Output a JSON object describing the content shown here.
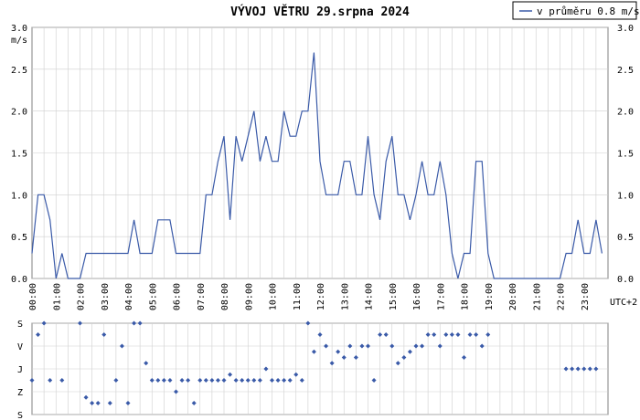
{
  "title": "VÝVOJ VĚTRU  29.srpna 2024",
  "legend": {
    "label": "v průměru 0.8 m/s",
    "color": "#3a5aa8"
  },
  "colors": {
    "line": "#3a5aa8",
    "grid": "#cfcfcf",
    "frame": "#808080"
  },
  "chart_data": [
    {
      "type": "line",
      "title": "VÝVOJ VĚTRU  29.srpna 2024",
      "ylabel": "m/s",
      "xlabel": "UTC+2",
      "x_ticks": [
        "00:00",
        "01:00",
        "02:00",
        "03:00",
        "04:00",
        "05:00",
        "06:00",
        "07:00",
        "08:00",
        "09:00",
        "10:00",
        "11:00",
        "12:00",
        "13:00",
        "14:00",
        "15:00",
        "16:00",
        "17:00",
        "18:00",
        "19:00",
        "20:00",
        "21:00",
        "22:00",
        "23:00"
      ],
      "y_ticks": [
        "0.0",
        "0.5",
        "1.0",
        "1.5",
        "2.0",
        "2.5",
        "3.0"
      ],
      "ylim": [
        0,
        3.0
      ],
      "xlim_hours": [
        0,
        24
      ],
      "grid": true,
      "legend_position": "top-right",
      "series": [
        {
          "name": "v průměru 0.8 m/s",
          "x": [
            0,
            0.25,
            0.5,
            0.75,
            1.0,
            1.25,
            1.5,
            1.75,
            2.0,
            2.25,
            2.5,
            2.75,
            3.0,
            3.25,
            3.5,
            3.75,
            4.0,
            4.25,
            4.5,
            4.75,
            5.0,
            5.25,
            5.5,
            5.75,
            6.0,
            6.25,
            6.5,
            6.75,
            7.0,
            7.25,
            7.5,
            7.75,
            8.0,
            8.25,
            8.5,
            8.75,
            9.0,
            9.25,
            9.5,
            9.75,
            10.0,
            10.25,
            10.5,
            10.75,
            11.0,
            11.25,
            11.5,
            11.75,
            12.0,
            12.25,
            12.5,
            12.75,
            13.0,
            13.25,
            13.5,
            13.75,
            14.0,
            14.25,
            14.5,
            14.75,
            15.0,
            15.25,
            15.5,
            15.75,
            16.0,
            16.25,
            16.5,
            16.75,
            17.0,
            17.25,
            17.5,
            17.75,
            18.0,
            18.25,
            18.5,
            18.75,
            19.0,
            19.25,
            19.5,
            19.75,
            20.0,
            20.25,
            20.5,
            20.75,
            21.0,
            21.25,
            21.5,
            21.75,
            22.0,
            22.25,
            22.5,
            22.75,
            23.0,
            23.25,
            23.5,
            23.75
          ],
          "values": [
            0.3,
            1.0,
            1.0,
            0.7,
            0,
            0.3,
            0,
            0,
            0,
            0.3,
            0.3,
            0.3,
            0.3,
            0.3,
            0.3,
            0.3,
            0.3,
            0.7,
            0.3,
            0.3,
            0.3,
            0.7,
            0.7,
            0.7,
            0.3,
            0.3,
            0.3,
            0.3,
            0.3,
            1.0,
            1.0,
            1.4,
            1.7,
            0.7,
            1.7,
            1.4,
            1.7,
            2.0,
            1.4,
            1.7,
            1.4,
            1.4,
            2.0,
            1.7,
            1.7,
            2.0,
            2.0,
            2.7,
            1.4,
            1.0,
            1.0,
            1.0,
            1.4,
            1.4,
            1.0,
            1.0,
            1.7,
            1.0,
            0.7,
            1.4,
            1.7,
            1.0,
            1.0,
            0.7,
            1.0,
            1.4,
            1.0,
            1.0,
            1.4,
            1.0,
            0.3,
            0,
            0.3,
            0.3,
            1.4,
            1.4,
            0.3,
            0,
            0,
            0,
            0,
            0,
            0,
            0,
            0,
            0,
            0,
            0,
            0,
            0.3,
            0.3,
            0.7,
            0.3,
            0.3,
            0.7,
            0.3
          ]
        }
      ]
    },
    {
      "type": "scatter",
      "ylabel": "",
      "y_categories": [
        "S",
        "V",
        "J",
        "Z",
        "S"
      ],
      "xlabel": "",
      "series": [
        {
          "name": "",
          "x": [
            0,
            0.25,
            0.5,
            0.75,
            1.25,
            2.0,
            2.25,
            2.5,
            2.75,
            3.0,
            3.25,
            3.5,
            3.75,
            4.0,
            4.25,
            4.5,
            4.75,
            5.0,
            5.25,
            5.5,
            5.75,
            6.0,
            6.25,
            6.5,
            6.75,
            7.0,
            7.25,
            7.5,
            7.75,
            8.0,
            8.25,
            8.5,
            8.75,
            9.0,
            9.25,
            9.5,
            9.75,
            10.0,
            10.25,
            10.5,
            10.75,
            11.0,
            11.25,
            11.5,
            11.75,
            12.0,
            12.25,
            12.5,
            12.75,
            13.0,
            13.25,
            13.5,
            13.75,
            14.0,
            14.25,
            14.5,
            14.75,
            15.0,
            15.25,
            15.5,
            15.75,
            16.0,
            16.25,
            16.5,
            16.75,
            17.0,
            17.25,
            17.5,
            17.75,
            18.0,
            18.25,
            18.5,
            18.75,
            19.0,
            22.25,
            22.5,
            22.75,
            23.0,
            23.25,
            23.5
          ],
          "values": [
            2.5,
            0.5,
            0,
            2.5,
            2.5,
            0,
            3.25,
            3.5,
            3.5,
            0.5,
            3.5,
            2.5,
            1.0,
            3.5,
            0,
            0,
            1.75,
            2.5,
            2.5,
            2.5,
            2.5,
            3.0,
            2.5,
            2.5,
            3.5,
            2.5,
            2.5,
            2.5,
            2.5,
            2.5,
            2.25,
            2.5,
            2.5,
            2.5,
            2.5,
            2.5,
            2.0,
            2.5,
            2.5,
            2.5,
            2.5,
            2.25,
            2.5,
            0,
            1.25,
            0.5,
            1.0,
            1.75,
            1.25,
            1.5,
            1.0,
            1.5,
            1.0,
            1.0,
            2.5,
            0.5,
            0.5,
            1.0,
            1.75,
            1.5,
            1.25,
            1.0,
            1.0,
            0.5,
            0.5,
            1.0,
            0.5,
            0.5,
            0.5,
            1.5,
            0.5,
            0.5,
            1.0,
            0.5,
            2.0,
            2.0,
            2.0,
            2.0,
            2.0,
            2.0
          ]
        }
      ]
    }
  ]
}
